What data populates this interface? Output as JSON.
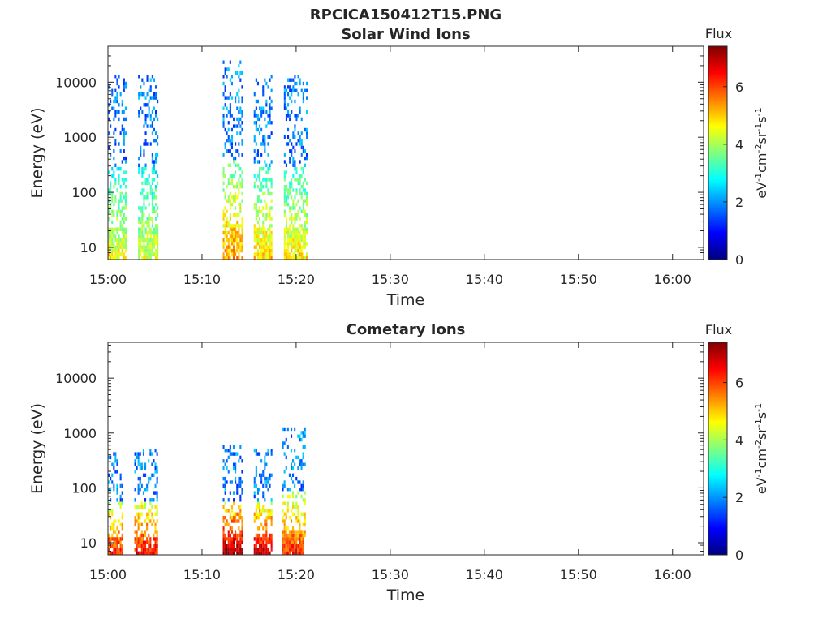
{
  "figure": {
    "title": "RPCICA150412T15.PNG"
  },
  "colors": {
    "axis": "#262626",
    "background": "#ffffff",
    "colormap": [
      "#00007f",
      "#0000ff",
      "#007fff",
      "#00ffff",
      "#7fff7f",
      "#ffff00",
      "#ff7f00",
      "#ff0000",
      "#7f0000"
    ]
  },
  "chart_data": [
    {
      "type": "heatmap",
      "title": "Solar Wind Ions",
      "xlabel": "Time",
      "ylabel": "Energy (eV)",
      "x_ticks": [
        "15:00",
        "15:10",
        "15:20",
        "15:30",
        "15:40",
        "15:50",
        "16:00"
      ],
      "x_tick_minutes": [
        0,
        10,
        20,
        30,
        40,
        50,
        60
      ],
      "xlim_minutes": [
        0,
        63.3
      ],
      "y_scale": "log",
      "y_ticks": [
        "10",
        "100",
        "1000",
        "10000"
      ],
      "y_tick_values": [
        10,
        100,
        1000,
        10000
      ],
      "ylim": [
        6,
        45000
      ],
      "colorbar": {
        "title": "Flux",
        "label": "eV-1cm-2sr-1s-1",
        "ticks": [
          "0",
          "2",
          "4",
          "6"
        ],
        "tick_values": [
          0,
          2,
          4,
          6
        ],
        "range": [
          0,
          7.4
        ]
      },
      "bursts": [
        {
          "start": 0.0,
          "end": 1.9,
          "max_energy": 14000,
          "low_energy_flux": 4.6
        },
        {
          "start": 3.2,
          "end": 5.2,
          "max_energy": 13000,
          "low_energy_flux": 4.4
        },
        {
          "start": 12.2,
          "end": 14.3,
          "max_energy": 25000,
          "low_energy_flux": 5.4
        },
        {
          "start": 15.5,
          "end": 17.3,
          "max_energy": 14000,
          "low_energy_flux": 5.0
        },
        {
          "start": 18.7,
          "end": 21.2,
          "max_energy": 14000,
          "low_energy_flux": 4.8
        }
      ]
    },
    {
      "type": "heatmap",
      "title": "Cometary Ions",
      "xlabel": "Time",
      "ylabel": "Energy (eV)",
      "x_ticks": [
        "15:00",
        "15:10",
        "15:20",
        "15:30",
        "15:40",
        "15:50",
        "16:00"
      ],
      "x_tick_minutes": [
        0,
        10,
        20,
        30,
        40,
        50,
        60
      ],
      "xlim_minutes": [
        0,
        63.3
      ],
      "y_scale": "log",
      "y_ticks": [
        "10",
        "100",
        "1000",
        "10000"
      ],
      "y_tick_values": [
        10,
        100,
        1000,
        10000
      ],
      "ylim": [
        6,
        45000
      ],
      "colorbar": {
        "title": "Flux",
        "label": "eV-1cm-2sr-1s-1",
        "ticks": [
          "0",
          "2",
          "4",
          "6"
        ],
        "tick_values": [
          0,
          2,
          4,
          6
        ],
        "range": [
          0,
          7.4
        ]
      },
      "bursts": [
        {
          "start": 0.0,
          "end": 1.6,
          "max_energy": 450,
          "low_energy_flux": 6.4
        },
        {
          "start": 2.8,
          "end": 5.2,
          "max_energy": 550,
          "low_energy_flux": 6.6
        },
        {
          "start": 12.2,
          "end": 14.3,
          "max_energy": 600,
          "low_energy_flux": 7.2
        },
        {
          "start": 15.5,
          "end": 17.3,
          "max_energy": 550,
          "low_energy_flux": 7.0
        },
        {
          "start": 18.5,
          "end": 21.0,
          "max_energy": 1300,
          "low_energy_flux": 6.2
        }
      ]
    }
  ]
}
